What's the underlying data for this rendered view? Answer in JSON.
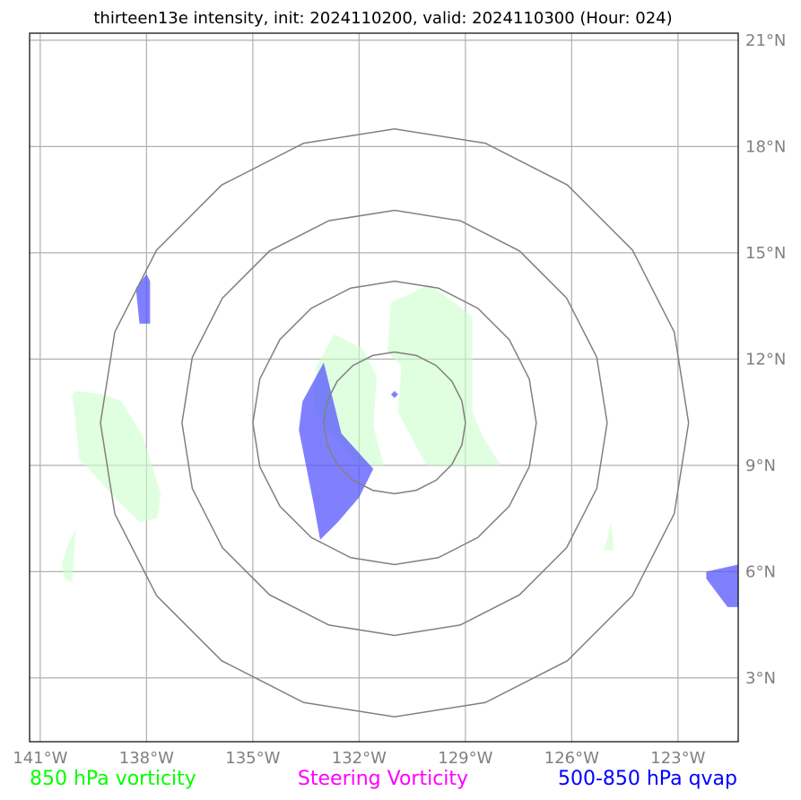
{
  "title": "thirteen13e intensity, init: 2024110200, valid: 2024110300 (Hour: 024)",
  "map": {
    "lon_range": [
      -141.3,
      -121.3
    ],
    "lat_range": [
      1.2,
      21.2
    ],
    "lon_ticks": [
      {
        "value": -141,
        "label": "141°W"
      },
      {
        "value": -138,
        "label": "138°W"
      },
      {
        "value": -135,
        "label": "135°W"
      },
      {
        "value": -132,
        "label": "132°W"
      },
      {
        "value": -129,
        "label": "129°W"
      },
      {
        "value": -126,
        "label": "126°W"
      },
      {
        "value": -123,
        "label": "123°W"
      }
    ],
    "lat_ticks": [
      {
        "value": 21,
        "label": "21°N"
      },
      {
        "value": 18,
        "label": "18°N"
      },
      {
        "value": 15,
        "label": "15°N"
      },
      {
        "value": 12,
        "label": "12°N"
      },
      {
        "value": 9,
        "label": "9°N"
      },
      {
        "value": 6,
        "label": "6°N"
      },
      {
        "value": 3,
        "label": "3°N"
      }
    ],
    "grid": true,
    "colors": {
      "vorticity_850": "#ccffcc",
      "qvap_500_850": "#5555ff",
      "rings": "#808080",
      "grid": "#b0b0b0"
    },
    "center": {
      "lon": -131.0,
      "lat": 10.2
    },
    "range_rings_deg": [
      2,
      4,
      6,
      8.3
    ],
    "vorticity_850_areas": [
      [
        [
          -131.9,
          12.3
        ],
        [
          -132.7,
          12.7
        ],
        [
          -133.2,
          11.8
        ],
        [
          -133.3,
          10.5
        ],
        [
          -132.0,
          9.0
        ],
        [
          -131.3,
          9.0
        ],
        [
          -131.6,
          10.1
        ],
        [
          -131.5,
          11.5
        ]
      ],
      [
        [
          -130.0,
          14.1
        ],
        [
          -131.1,
          13.6
        ],
        [
          -131.2,
          12.2
        ],
        [
          -130.8,
          11.8
        ],
        [
          -130.9,
          10.5
        ],
        [
          -130.1,
          9.0
        ],
        [
          -128.0,
          9.0
        ],
        [
          -128.5,
          9.8
        ],
        [
          -128.8,
          10.5
        ],
        [
          -128.8,
          13.2
        ]
      ],
      [
        [
          -140.0,
          11.1
        ],
        [
          -139.2,
          11.0
        ],
        [
          -138.7,
          10.8
        ],
        [
          -138.1,
          9.8
        ],
        [
          -137.6,
          8.2
        ],
        [
          -137.7,
          7.5
        ],
        [
          -138.2,
          7.4
        ],
        [
          -139.0,
          8.2
        ],
        [
          -139.9,
          9.2
        ],
        [
          -140.0,
          10.2
        ],
        [
          -140.1,
          11.0
        ]
      ],
      [
        [
          -140.0,
          7.2
        ],
        [
          -140.2,
          6.8
        ],
        [
          -140.4,
          6.2
        ],
        [
          -140.3,
          5.8
        ],
        [
          -140.1,
          5.7
        ]
      ],
      [
        [
          -124.9,
          7.4
        ],
        [
          -125.0,
          6.9
        ],
        [
          -125.1,
          6.6
        ],
        [
          -124.8,
          6.6
        ]
      ]
    ],
    "qvap_500_850_areas": [
      [
        [
          -133.0,
          11.9
        ],
        [
          -133.6,
          10.8
        ],
        [
          -133.7,
          10.0
        ],
        [
          -133.3,
          8.0
        ],
        [
          -133.1,
          6.9
        ],
        [
          -132.6,
          7.4
        ],
        [
          -132.0,
          8.1
        ],
        [
          -131.6,
          8.9
        ],
        [
          -132.5,
          9.9
        ]
      ],
      [
        [
          -138.0,
          14.4
        ],
        [
          -138.3,
          14.0
        ],
        [
          -138.2,
          13.0
        ],
        [
          -137.9,
          13.0
        ],
        [
          -137.9,
          14.2
        ]
      ],
      [
        [
          -131.0,
          11.1
        ],
        [
          -131.1,
          11.0
        ],
        [
          -131.0,
          10.9
        ],
        [
          -130.9,
          11.0
        ]
      ],
      [
        [
          -122.2,
          6.0
        ],
        [
          -121.3,
          6.2
        ],
        [
          -121.3,
          5.0
        ],
        [
          -121.6,
          5.0
        ],
        [
          -121.9,
          5.4
        ],
        [
          -122.2,
          5.8
        ]
      ]
    ]
  },
  "legend": [
    {
      "label": "850 hPa vorticity",
      "color": "#00ff00"
    },
    {
      "label": "Steering Vorticity",
      "color": "#ff00ff"
    },
    {
      "label": "500-850 hPa qvap",
      "color": "#0000ff"
    }
  ]
}
